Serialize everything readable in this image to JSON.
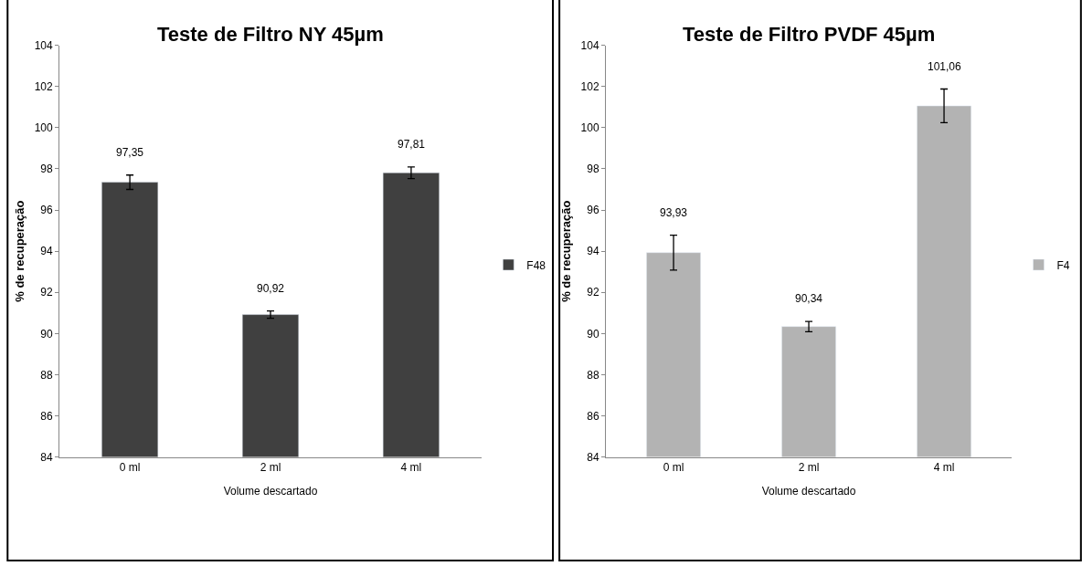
{
  "chart_data": [
    {
      "type": "bar",
      "title": "Teste de Filtro NY 45µm",
      "xlabel": "Volume descartado",
      "ylabel": "% de recuperação",
      "categories": [
        "0 ml",
        "2 ml",
        "4 ml"
      ],
      "series": [
        {
          "name": "F48",
          "color": "#404040",
          "values": [
            97.35,
            90.92,
            97.81
          ],
          "errors": [
            0.35,
            0.18,
            0.28
          ],
          "value_labels": [
            "97,35",
            "90,92",
            "97,81"
          ]
        }
      ],
      "ylim": [
        84,
        104
      ],
      "yticks": [
        84,
        86,
        88,
        90,
        92,
        94,
        96,
        98,
        100,
        102,
        104
      ],
      "grid": false,
      "legend": "right"
    },
    {
      "type": "bar",
      "title": "Teste de Filtro PVDF 45µm",
      "xlabel": "Volume descartado",
      "ylabel": "% de recuperação",
      "categories": [
        "0 ml",
        "2 ml",
        "4 ml"
      ],
      "series": [
        {
          "name": "F4",
          "color": "#b3b3b3",
          "values": [
            93.93,
            90.34,
            101.06
          ],
          "errors": [
            0.85,
            0.25,
            0.82
          ],
          "value_labels": [
            "93,93",
            "90,34",
            "101,06"
          ]
        }
      ],
      "ylim": [
        84,
        104
      ],
      "yticks": [
        84,
        86,
        88,
        90,
        92,
        94,
        96,
        98,
        100,
        102,
        104
      ],
      "grid": false,
      "legend": "right"
    }
  ]
}
